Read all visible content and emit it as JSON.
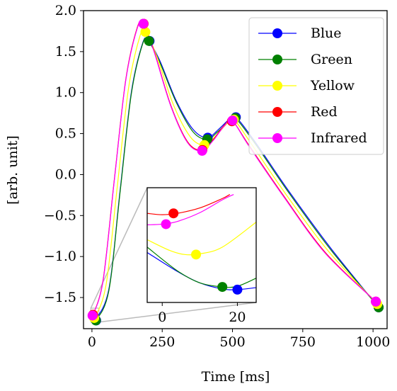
{
  "chart_data": {
    "type": "line",
    "title": "",
    "xlabel": "Time [ms]",
    "ylabel": "[arb. unit]",
    "xlim": [
      -30,
      1050
    ],
    "ylim": [
      -1.88,
      2.0
    ],
    "xticks": [
      0,
      250,
      500,
      750,
      1000
    ],
    "xtick_labels": [
      "0",
      "250",
      "500",
      "750",
      "1000"
    ],
    "yticks": [
      2.0,
      1.5,
      1.0,
      0.5,
      0.0,
      -0.5,
      -1.0,
      -1.5
    ],
    "ytick_labels": [
      "2.0",
      "1.5",
      "1.0",
      "0.5",
      "0.0",
      "−0.5",
      "−1.0",
      "−1.5"
    ],
    "legend_position": "top-right",
    "series": [
      {
        "name": "Blue",
        "color": "#0000ff",
        "x": [
          0,
          10,
          60,
          100,
          140,
          180,
          200,
          240,
          300,
          360,
          410,
          450,
          490,
          510,
          580,
          700,
          850,
          1020
        ],
        "y": [
          -1.7,
          -1.77,
          -1.4,
          -0.2,
          1.0,
          1.6,
          1.63,
          1.4,
          0.9,
          0.55,
          0.45,
          0.55,
          0.68,
          0.71,
          0.4,
          -0.2,
          -0.9,
          -1.62
        ],
        "markers": [
          {
            "x": 15,
            "y": -1.78
          },
          {
            "x": 205,
            "y": 1.63
          },
          {
            "x": 412,
            "y": 0.45
          },
          {
            "x": 512,
            "y": 0.7
          },
          {
            "x": 1020,
            "y": -1.62
          }
        ]
      },
      {
        "name": "Green",
        "color": "#008000",
        "x": [
          0,
          12,
          60,
          100,
          140,
          180,
          200,
          240,
          300,
          360,
          410,
          450,
          490,
          510,
          580,
          700,
          850,
          1020
        ],
        "y": [
          -1.7,
          -1.78,
          -1.42,
          -0.22,
          0.98,
          1.59,
          1.63,
          1.38,
          0.88,
          0.52,
          0.43,
          0.53,
          0.66,
          0.69,
          0.38,
          -0.22,
          -0.92,
          -1.62
        ],
        "markers": [
          {
            "x": 14,
            "y": -1.78
          },
          {
            "x": 203,
            "y": 1.63
          },
          {
            "x": 410,
            "y": 0.43
          },
          {
            "x": 510,
            "y": 0.69
          },
          {
            "x": 1020,
            "y": -1.62
          }
        ]
      },
      {
        "name": "Yellow",
        "color": "#ffff00",
        "x": [
          0,
          8,
          50,
          90,
          130,
          170,
          190,
          230,
          290,
          350,
          400,
          440,
          480,
          505,
          570,
          690,
          840,
          1015
        ],
        "y": [
          -1.7,
          -1.75,
          -1.35,
          -0.15,
          1.05,
          1.68,
          1.74,
          1.45,
          0.85,
          0.46,
          0.36,
          0.47,
          0.62,
          0.67,
          0.36,
          -0.24,
          -0.93,
          -1.58
        ],
        "markers": [
          {
            "x": 8,
            "y": -1.75
          },
          {
            "x": 190,
            "y": 1.74
          },
          {
            "x": 400,
            "y": 0.36
          },
          {
            "x": 505,
            "y": 0.67
          },
          {
            "x": 1015,
            "y": -1.58
          }
        ]
      },
      {
        "name": "Red",
        "color": "#ff0000",
        "x": [
          0,
          4,
          40,
          80,
          120,
          160,
          182,
          220,
          280,
          340,
          390,
          430,
          470,
          500,
          560,
          680,
          830,
          1010
        ],
        "y": [
          -1.7,
          -1.71,
          -1.28,
          -0.05,
          1.15,
          1.78,
          1.84,
          1.52,
          0.85,
          0.4,
          0.3,
          0.42,
          0.6,
          0.65,
          0.35,
          -0.25,
          -0.95,
          -1.55
        ],
        "markers": [
          {
            "x": 4,
            "y": -1.71
          },
          {
            "x": 184,
            "y": 1.84
          },
          {
            "x": 393,
            "y": 0.3
          },
          {
            "x": 498,
            "y": 0.65
          },
          {
            "x": 1010,
            "y": -1.55
          }
        ]
      },
      {
        "name": "Infrared",
        "color": "#ff00ff",
        "x": [
          0,
          3,
          40,
          80,
          120,
          160,
          182,
          220,
          280,
          340,
          390,
          430,
          470,
          500,
          560,
          680,
          830,
          1010
        ],
        "y": [
          -1.71,
          -1.72,
          -1.29,
          -0.06,
          1.14,
          1.77,
          1.84,
          1.51,
          0.84,
          0.39,
          0.29,
          0.41,
          0.59,
          0.65,
          0.34,
          -0.26,
          -0.96,
          -1.55
        ],
        "markers": [
          {
            "x": 2,
            "y": -1.72
          },
          {
            "x": 183,
            "y": 1.84
          },
          {
            "x": 392,
            "y": 0.29
          },
          {
            "x": 500,
            "y": 0.66
          },
          {
            "x": 1010,
            "y": -1.55
          }
        ]
      }
    ],
    "inset": {
      "xticks": [
        0,
        20
      ],
      "xtick_labels": [
        "0",
        "20"
      ],
      "xlim": [
        -4,
        25
      ],
      "ylim": [
        -1.8,
        -1.63
      ],
      "series": [
        {
          "name": "Blue",
          "color": "#0000ff",
          "x": [
            -4,
            4,
            10,
            16,
            20,
            25
          ],
          "y": [
            -1.726,
            -1.754,
            -1.771,
            -1.78,
            -1.781,
            -1.778
          ],
          "marker": {
            "x": 20,
            "y": -1.781
          }
        },
        {
          "name": "Green",
          "color": "#008000",
          "x": [
            -4,
            4,
            10,
            16,
            20,
            25
          ],
          "y": [
            -1.718,
            -1.753,
            -1.771,
            -1.777,
            -1.776,
            -1.764
          ],
          "marker": {
            "x": 16,
            "y": -1.777
          }
        },
        {
          "name": "Yellow",
          "color": "#ffff00",
          "x": [
            -4,
            2,
            6,
            10,
            16,
            25
          ],
          "y": [
            -1.707,
            -1.723,
            -1.729,
            -1.728,
            -1.718,
            -1.681
          ],
          "marker": {
            "x": 9,
            "y": -1.729
          }
        },
        {
          "name": "Red",
          "color": "#ff0000",
          "x": [
            -4,
            0,
            4,
            10,
            16,
            18
          ],
          "y": [
            -1.668,
            -1.67,
            -1.668,
            -1.66,
            -1.646,
            -1.64
          ],
          "marker": {
            "x": 3,
            "y": -1.668
          }
        },
        {
          "name": "Infrared",
          "color": "#ff00ff",
          "x": [
            -4,
            0,
            4,
            10,
            16,
            19
          ],
          "y": [
            -1.685,
            -1.684,
            -1.68,
            -1.667,
            -1.648,
            -1.64
          ],
          "marker": {
            "x": 1,
            "y": -1.684
          }
        }
      ]
    }
  }
}
